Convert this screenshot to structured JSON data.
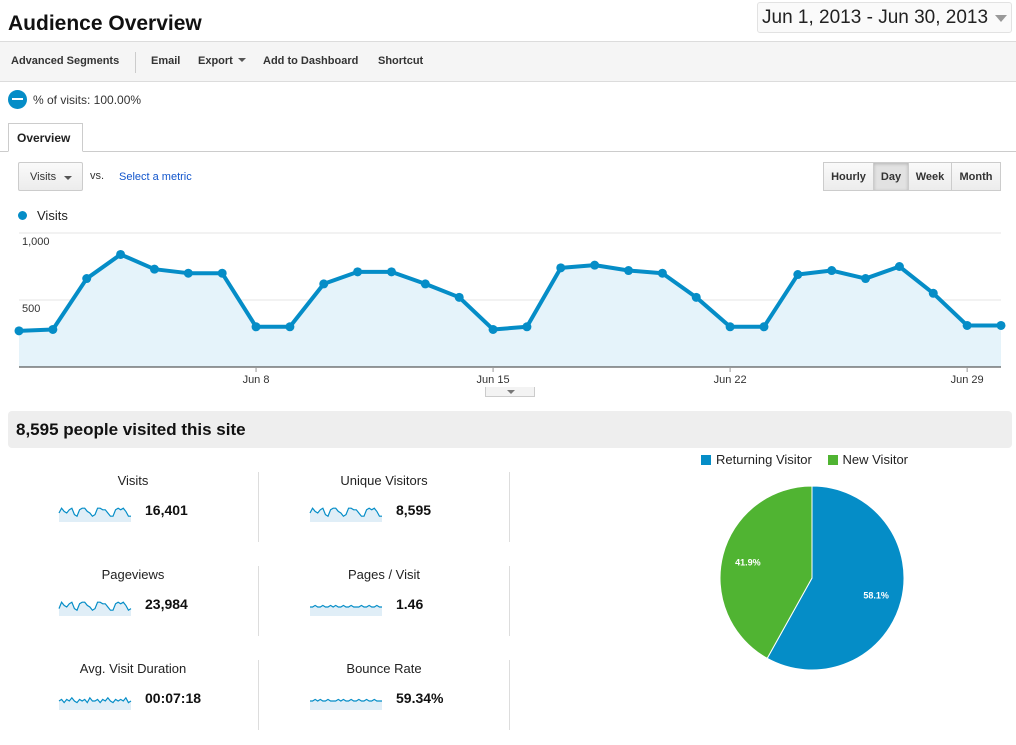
{
  "header": {
    "title": "Audience Overview",
    "date_range": "Jun 1, 2013 - Jun 30, 2013"
  },
  "toolbar": {
    "items": [
      "Advanced Segments",
      "Email",
      "Export",
      "Add to Dashboard",
      "Shortcut"
    ]
  },
  "segment": {
    "label": "% of visits: 100.00%"
  },
  "tabs": {
    "overview": "Overview"
  },
  "controls": {
    "metric_select": "Visits",
    "vs": "vs.",
    "select_metric": "Select a metric",
    "granularity": [
      "Hourly",
      "Day",
      "Week",
      "Month"
    ],
    "granularity_selected": "Day"
  },
  "colors": {
    "primary": "#058dc7",
    "secondary": "#50b432",
    "area": "#e5f3fa"
  },
  "chart_data": [
    {
      "type": "area",
      "title": "Visits",
      "series": [
        {
          "name": "Visits",
          "values": [
            270,
            280,
            660,
            840,
            730,
            700,
            700,
            300,
            300,
            620,
            710,
            710,
            620,
            520,
            280,
            300,
            740,
            760,
            720,
            700,
            520,
            300,
            300,
            690,
            720,
            660,
            750,
            550,
            310,
            310
          ]
        }
      ],
      "x": [
        1,
        2,
        3,
        4,
        5,
        6,
        7,
        8,
        9,
        10,
        11,
        12,
        13,
        14,
        15,
        16,
        17,
        18,
        19,
        20,
        21,
        22,
        23,
        24,
        25,
        26,
        27,
        28,
        29,
        30
      ],
      "x_tick_labels": [
        {
          "day": 8,
          "label": "Jun 8"
        },
        {
          "day": 15,
          "label": "Jun 15"
        },
        {
          "day": 22,
          "label": "Jun 22"
        },
        {
          "day": 29,
          "label": "Jun 29"
        }
      ],
      "y_tick_labels": [
        {
          "value": 1000,
          "label": "1,000"
        },
        {
          "value": 500,
          "label": "500"
        }
      ],
      "ylim": [
        0,
        1000
      ],
      "legend": "top-left"
    },
    {
      "type": "pie",
      "title": "",
      "categories": [
        "Returning Visitor",
        "New Visitor"
      ],
      "values": [
        58.1,
        41.9
      ],
      "labels": [
        "58.1%",
        "41.9%"
      ],
      "legend": "top"
    }
  ],
  "summary": {
    "headline": "8,595 people visited this site"
  },
  "metrics": [
    {
      "label": "Visits",
      "value": "16,401",
      "spark": [
        5,
        8,
        6,
        5,
        7,
        8,
        4,
        3,
        7,
        8,
        8,
        6,
        5,
        3,
        4,
        8,
        8,
        7,
        7,
        5,
        3,
        3,
        7,
        8,
        7,
        8,
        6,
        3,
        3
      ]
    },
    {
      "label": "Unique Visitors",
      "value": "8,595",
      "spark": [
        5,
        8,
        6,
        5,
        7,
        8,
        4,
        3,
        7,
        8,
        8,
        6,
        5,
        3,
        4,
        8,
        8,
        7,
        7,
        5,
        3,
        3,
        7,
        8,
        7,
        8,
        6,
        3,
        3
      ]
    },
    {
      "label": "Pageviews",
      "value": "23,984",
      "spark": [
        4,
        8,
        6,
        5,
        7,
        8,
        4,
        3,
        7,
        8,
        8,
        6,
        5,
        3,
        4,
        8,
        8,
        7,
        7,
        5,
        3,
        3,
        7,
        8,
        7,
        8,
        6,
        3,
        4
      ]
    },
    {
      "label": "Pages / Visit",
      "value": "1.46",
      "spark": [
        5,
        5,
        6,
        5,
        5,
        6,
        5,
        5,
        6,
        5,
        6,
        5,
        5,
        6,
        5,
        5,
        6,
        5,
        5,
        5,
        6,
        5,
        5,
        6,
        5,
        5,
        6,
        5,
        5
      ]
    },
    {
      "label": "Avg. Visit Duration",
      "value": "00:07:18",
      "spark": [
        5,
        6,
        4,
        6,
        5,
        7,
        5,
        4,
        6,
        5,
        6,
        4,
        7,
        5,
        5,
        6,
        4,
        6,
        5,
        7,
        5,
        4,
        6,
        5,
        6,
        5,
        7,
        4,
        5
      ]
    },
    {
      "label": "Bounce Rate",
      "value": "59.34%",
      "spark": [
        5,
        5,
        6,
        5,
        6,
        5,
        5,
        6,
        5,
        5,
        5,
        6,
        5,
        6,
        5,
        5,
        6,
        5,
        5,
        6,
        5,
        5,
        6,
        5,
        5,
        6,
        5,
        5,
        5
      ]
    }
  ]
}
